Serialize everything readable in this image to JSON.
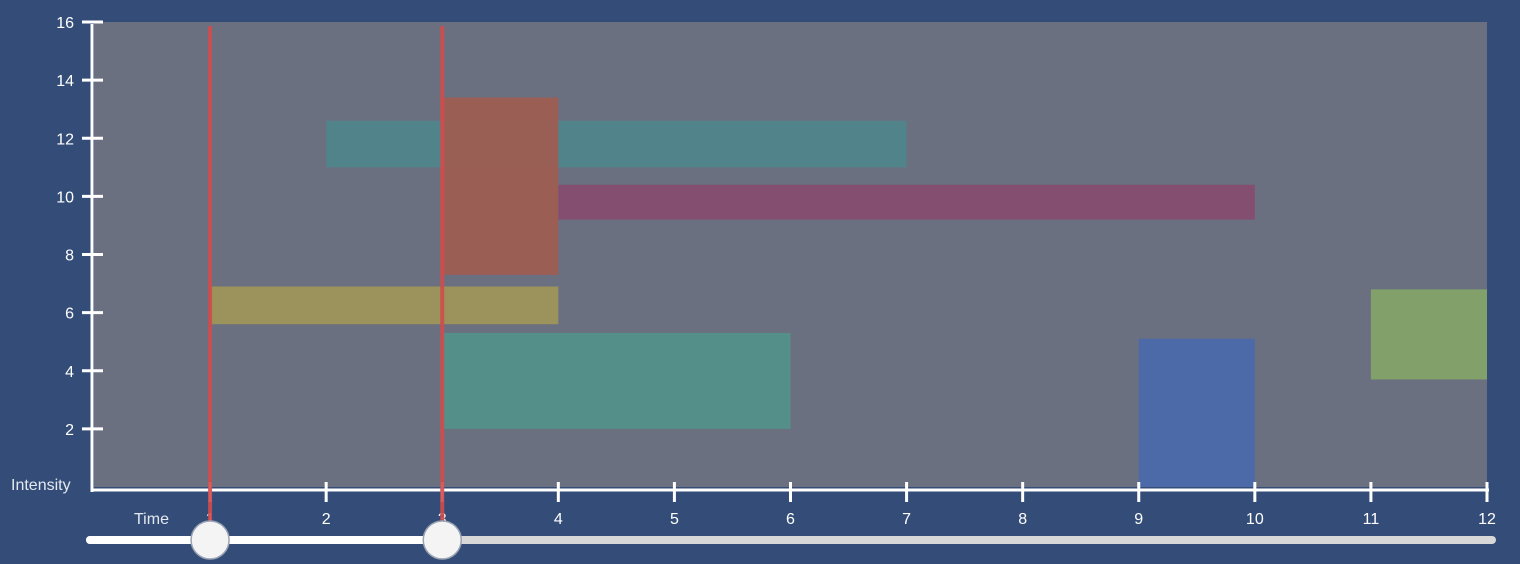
{
  "chart_data": {
    "type": "bar",
    "subtype": "time-interval",
    "xlabel": "Time",
    "ylabel": "Intensity",
    "xlim": [
      0,
      12
    ],
    "ylim": [
      0,
      16
    ],
    "x_ticks": [
      "1",
      "2",
      "3",
      "4",
      "5",
      "6",
      "7",
      "8",
      "9",
      "10",
      "11",
      "12"
    ],
    "y_ticks": [
      "2",
      "4",
      "6",
      "8",
      "10",
      "12",
      "14",
      "16"
    ],
    "grid": false,
    "legend": "none",
    "background": "#6a7080",
    "intervals": [
      {
        "start": 2,
        "end": 7,
        "low": 11,
        "high": 12.6,
        "color": "#4f848c"
      },
      {
        "start": 3,
        "end": 4,
        "low": 7.3,
        "high": 13.4,
        "color": "#a05c50"
      },
      {
        "start": 4,
        "end": 10,
        "low": 9.2,
        "high": 10.4,
        "color": "#874b70"
      },
      {
        "start": 1,
        "end": 4,
        "low": 5.6,
        "high": 6.9,
        "color": "#a19659"
      },
      {
        "start": 3,
        "end": 6,
        "low": 2,
        "high": 5.3,
        "color": "#53918a"
      },
      {
        "start": 9,
        "end": 10,
        "low": 0,
        "high": 5.1,
        "color": "#4a69ab"
      },
      {
        "start": 11,
        "end": 12,
        "low": 3.7,
        "high": 6.8,
        "color": "#84a467"
      }
    ],
    "range_selection": {
      "start": 1,
      "end": 3,
      "marker_color": "#d24b4b"
    }
  },
  "colors": {
    "page_background": "#344d78",
    "axis": "#ffffff",
    "slider_track": "#d8d8d8",
    "slider_fill": "#ffffff"
  }
}
